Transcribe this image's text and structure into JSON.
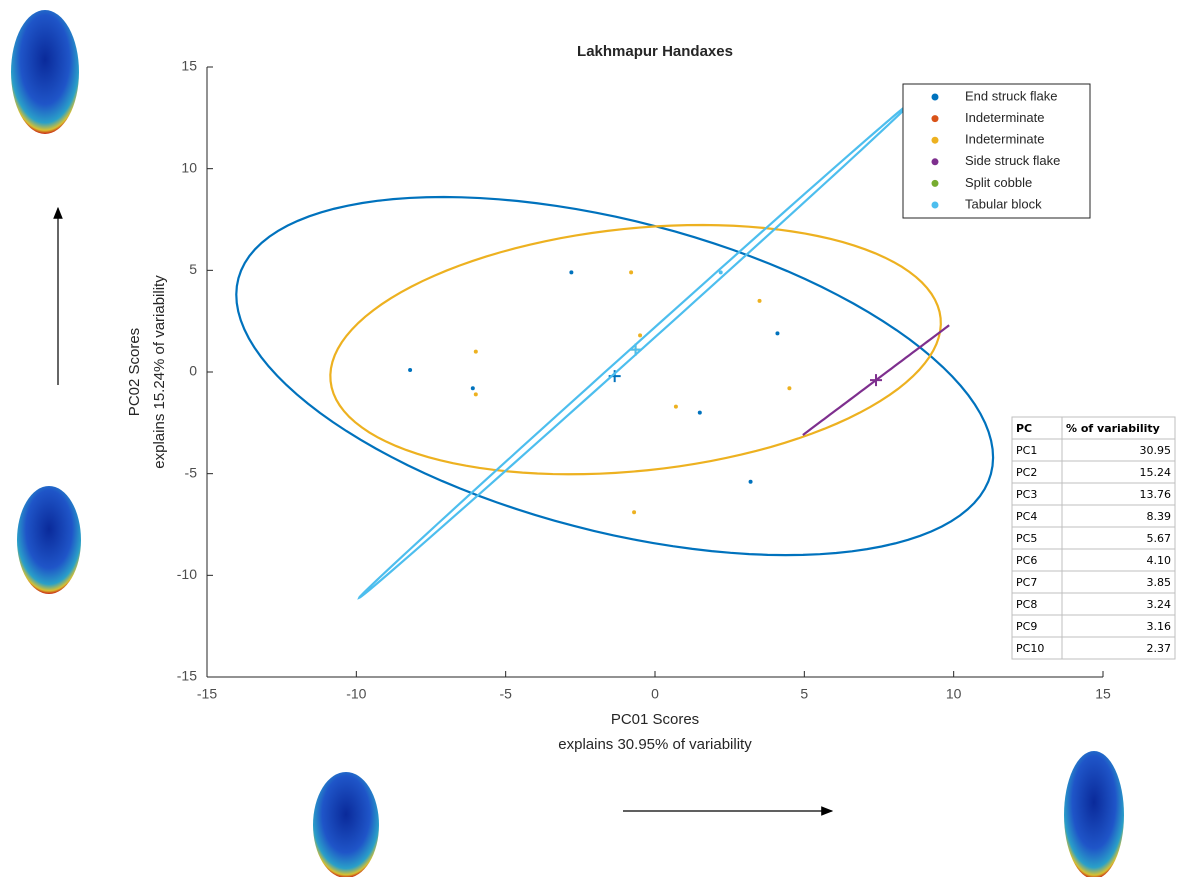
{
  "chart_data": {
    "type": "scatter",
    "title": "Lakhmapur Handaxes",
    "xlabel": [
      "PC01 Scores",
      "explains 30.95% of variability"
    ],
    "ylabel": [
      "PC02 Scores",
      "explains 15.24% of variability"
    ],
    "xlim": [
      -15,
      15
    ],
    "xticks": [
      -15,
      -10,
      -5,
      0,
      5,
      10,
      15
    ],
    "ylim": [
      -15,
      15
    ],
    "yticks": [
      -15,
      -10,
      -5,
      0,
      5,
      10,
      15
    ],
    "legend": "upper right",
    "series": [
      {
        "name": "End struck flake",
        "color": "#0072bd",
        "x": [
          -8.2,
          -6.1,
          -2.8,
          4.1,
          1.5,
          3.2
        ],
        "y": [
          0.1,
          -0.8,
          4.9,
          1.9,
          -2.0,
          -5.4
        ],
        "ellipse": {
          "center": [
            -1.35,
            -0.2
          ],
          "axes": [
            [
              12.4,
              -2.3
            ],
            [
              -2.6,
              8.5
            ]
          ]
        }
      },
      {
        "name": "Indeterminate",
        "color": "#d95319",
        "x": [],
        "y": []
      },
      {
        "name": "Indeterminate",
        "color": "#edb120",
        "x": [
          -0.8,
          -6.0,
          -6.0,
          -0.5,
          3.5,
          4.5,
          0.7,
          -0.7
        ],
        "y": [
          4.9,
          1.0,
          -1.1,
          1.8,
          3.5,
          -0.8,
          -1.7,
          -6.9
        ],
        "ellipse": {
          "center": [
            -0.65,
            1.1
          ],
          "axes": [
            [
              10.15,
              0.6
            ],
            [
              1.2,
              6.1
            ]
          ]
        }
      },
      {
        "name": "Side struck flake",
        "color": "#7e2f8e",
        "x": [],
        "y": [],
        "ellipse": {
          "center": [
            7.4,
            -0.4
          ],
          "axes": [
            [
              2.45,
              2.7
            ],
            [
              0,
              0
            ]
          ]
        }
      },
      {
        "name": "Split cobble",
        "color": "#77ac30",
        "x": [],
        "y": []
      },
      {
        "name": "Tabular block",
        "color": "#4dbeee",
        "x": [
          2.2
        ],
        "y": [
          4.9
        ],
        "ellipse": {
          "center": [
            -0.65,
            1.1
          ],
          "axes": [
            [
              9.25,
              12.2
            ],
            [
              0.12,
              -0.09
            ]
          ]
        }
      }
    ]
  },
  "table": {
    "header": [
      "PC",
      "% of variability"
    ],
    "rows": [
      [
        "PC1",
        "30.95"
      ],
      [
        "PC2",
        "15.24"
      ],
      [
        "PC3",
        "13.76"
      ],
      [
        "PC4",
        "8.39"
      ],
      [
        "PC5",
        "5.67"
      ],
      [
        "PC6",
        "4.10"
      ],
      [
        "PC7",
        "3.85"
      ],
      [
        "PC8",
        "3.24"
      ],
      [
        "PC9",
        "3.16"
      ],
      [
        "PC10",
        "2.37"
      ]
    ]
  }
}
